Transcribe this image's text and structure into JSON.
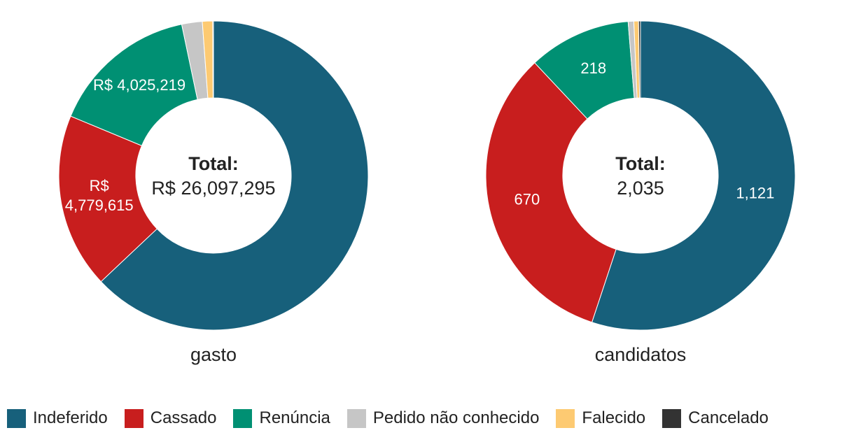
{
  "colors": {
    "Indeferido": "#17607b",
    "Cassado": "#c81e1e",
    "Renúncia": "#009073",
    "Pedido não conhecido": "#c6c6c6",
    "Falecido": "#fdca72",
    "Cancelado": "#333333"
  },
  "legend": {
    "items": [
      {
        "label": "Indeferido",
        "color": "#17607b"
      },
      {
        "label": "Cassado",
        "color": "#c81e1e"
      },
      {
        "label": "Renúncia",
        "color": "#009073"
      },
      {
        "label": "Pedido não conhecido",
        "color": "#c6c6c6"
      },
      {
        "label": "Falecido",
        "color": "#fdca72"
      },
      {
        "label": "Cancelado",
        "color": "#333333"
      }
    ]
  },
  "chart_data": [
    {
      "type": "pie",
      "donut": true,
      "caption": "gasto",
      "center_label": "Total:",
      "center_value": "R$ 26,097,295",
      "categories": [
        "Indeferido",
        "Cassado",
        "Renúncia",
        "Pedido não conhecido",
        "Falecido",
        "Cancelado"
      ],
      "values": [
        16431000,
        4779615,
        4025219,
        560000,
        280000,
        21461
      ],
      "data_labels": [
        "",
        "R$\n4,779,615",
        "R$ 4,025,219",
        "",
        "",
        ""
      ]
    },
    {
      "type": "pie",
      "donut": true,
      "caption": "candidatos",
      "center_label": "Total:",
      "center_value": "2,035",
      "categories": [
        "Indeferido",
        "Cassado",
        "Renúncia",
        "Pedido não conhecido",
        "Falecido",
        "Cancelado"
      ],
      "values": [
        1121,
        670,
        218,
        12,
        10,
        4
      ],
      "data_labels": [
        "1,121",
        "670",
        "218",
        "",
        "",
        ""
      ]
    }
  ]
}
